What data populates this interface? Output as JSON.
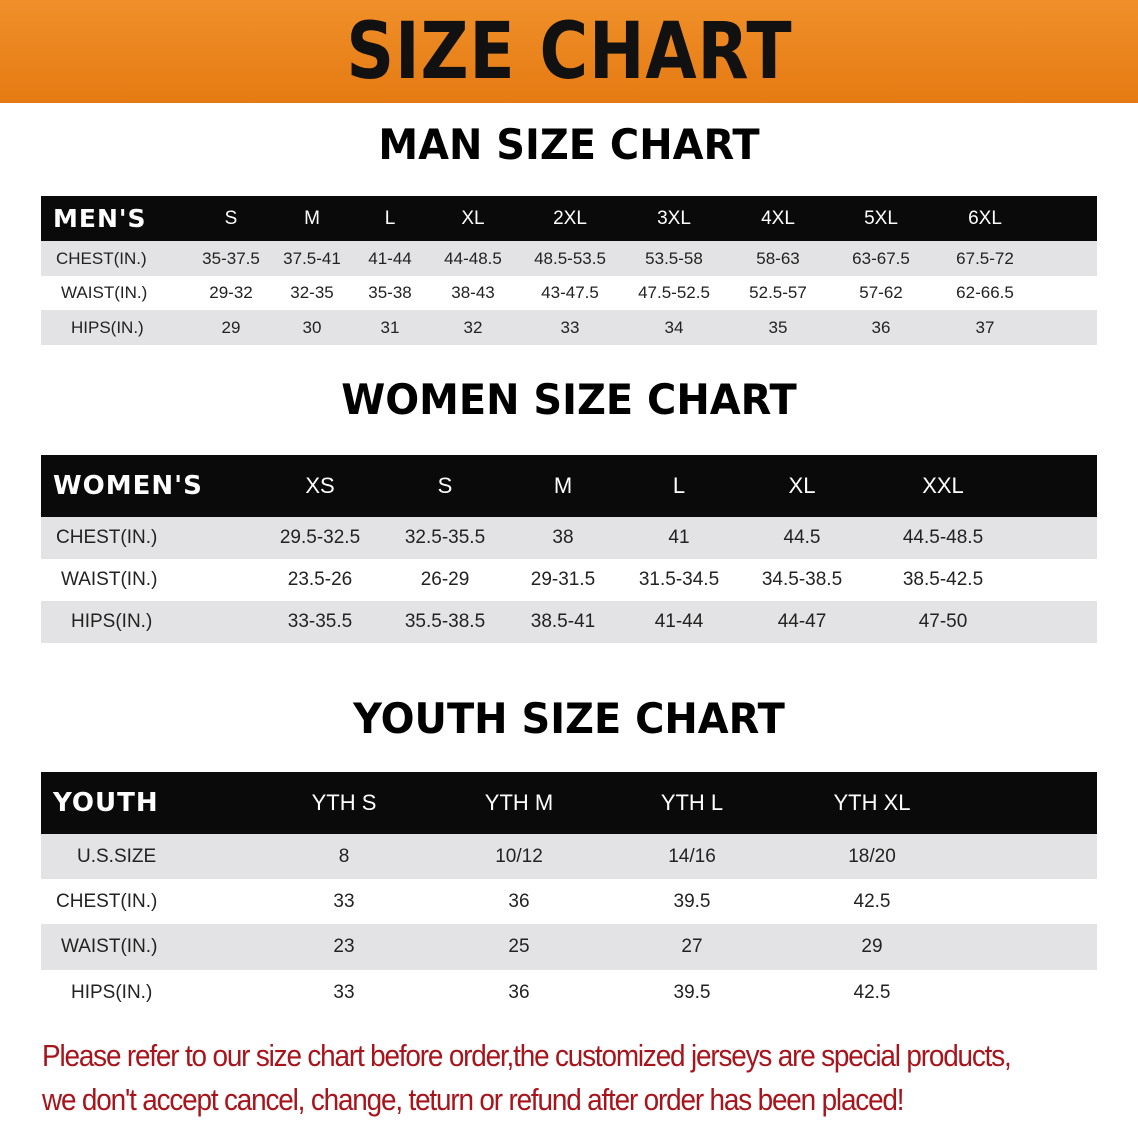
{
  "banner_title": "SIZE CHART",
  "men": {
    "title": "MAN SIZE CHART",
    "header": "MEN'S",
    "sizes": [
      "S",
      "M",
      "L",
      "XL",
      "2XL",
      "3XL",
      "4XL",
      "5XL",
      "6XL"
    ],
    "rows": [
      {
        "label": "CHEST(IN.)",
        "values": [
          "35-37.5",
          "37.5-41",
          "41-44",
          "44-48.5",
          "48.5-53.5",
          "53.5-58",
          "58-63",
          "63-67.5",
          "67.5-72"
        ]
      },
      {
        "label": "WAIST(IN.)",
        "values": [
          "29-32",
          "32-35",
          "35-38",
          "38-43",
          "43-47.5",
          "47.5-52.5",
          "52.5-57",
          "57-62",
          "62-66.5"
        ]
      },
      {
        "label": "HIPS(IN.)",
        "values": [
          "29",
          "30",
          "31",
          "32",
          "33",
          "34",
          "35",
          "36",
          "37"
        ]
      }
    ]
  },
  "women": {
    "title": "WOMEN SIZE CHART",
    "header": "WOMEN'S",
    "sizes": [
      "XS",
      "S",
      "M",
      "L",
      "XL",
      "XXL"
    ],
    "rows": [
      {
        "label": "CHEST(IN.)",
        "values": [
          "29.5-32.5",
          "32.5-35.5",
          "38",
          "41",
          "44.5",
          "44.5-48.5"
        ]
      },
      {
        "label": "WAIST(IN.)",
        "values": [
          "23.5-26",
          "26-29",
          "29-31.5",
          "31.5-34.5",
          "34.5-38.5",
          "38.5-42.5"
        ]
      },
      {
        "label": "HIPS(IN.)",
        "values": [
          "33-35.5",
          "35.5-38.5",
          "38.5-41",
          "41-44",
          "44-47",
          "47-50"
        ]
      }
    ]
  },
  "youth": {
    "title": "YOUTH SIZE CHART",
    "header": "YOUTH",
    "sizes": [
      "YTH S",
      "YTH M",
      "YTH L",
      "YTH XL"
    ],
    "rows": [
      {
        "label": "U.S.SIZE",
        "values": [
          "8",
          "10/12",
          "14/16",
          "18/20"
        ]
      },
      {
        "label": "CHEST(IN.)",
        "values": [
          "33",
          "36",
          "39.5",
          "42.5"
        ]
      },
      {
        "label": "WAIST(IN.)",
        "values": [
          "23",
          "25",
          "27",
          "29"
        ]
      },
      {
        "label": "HIPS(IN.)",
        "values": [
          "33",
          "36",
          "39.5",
          "42.5"
        ]
      }
    ]
  },
  "notice": {
    "line1": "Please refer to our size chart before order,the customized jerseys are special products,",
    "line2": "we don't accept cancel, change, teturn or refund after order has been placed!",
    "color": "#a8141c"
  },
  "colors": {
    "banner": "#e8841c",
    "header_row": "#0a0a0a",
    "stripe": "#e3e3e5"
  }
}
